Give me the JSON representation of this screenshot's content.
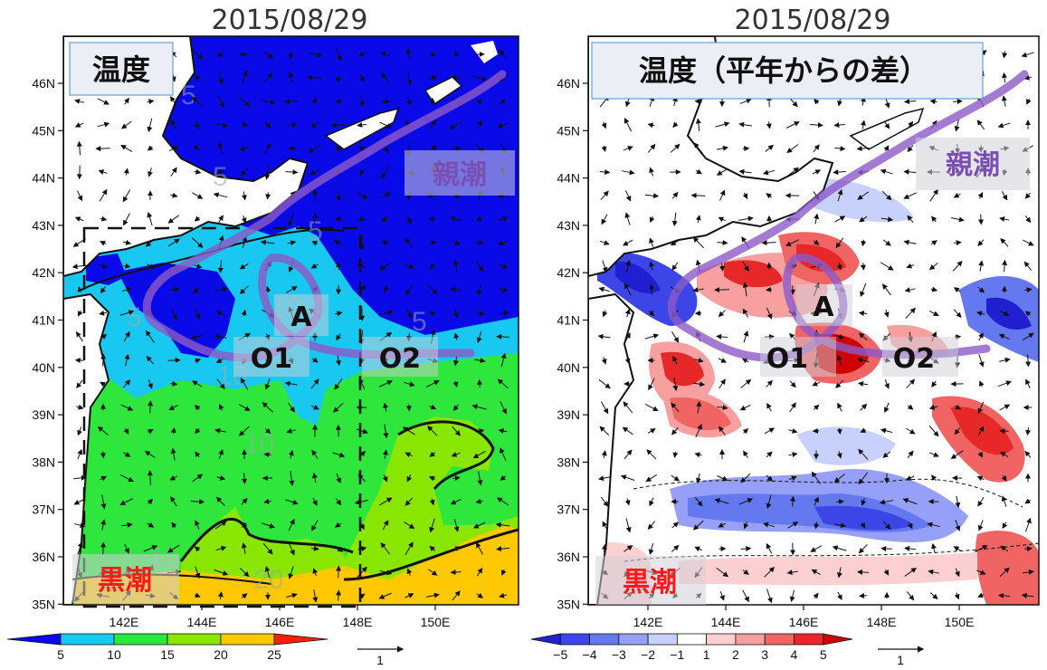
{
  "left_panel": {
    "date": "2015/08/29",
    "label": "温度",
    "oyashio": "親潮",
    "kuroshio": "黒潮",
    "point_a": "A",
    "point_o1": "O1",
    "point_o2": "O2",
    "lat_ticks": [
      "46N",
      "45N",
      "44N",
      "43N",
      "42N",
      "41N",
      "40N",
      "39N",
      "38N",
      "37N",
      "36N",
      "35N"
    ],
    "lon_ticks": [
      "142E",
      "144E",
      "146E",
      "148E",
      "150E"
    ],
    "contour_labels": [
      "5",
      "5",
      "5",
      "5",
      "10",
      "10",
      "10",
      "15",
      "20",
      "5"
    ],
    "colorbar": {
      "ticks": [
        "5",
        "10",
        "15",
        "20",
        "25"
      ],
      "colors": [
        "#0a0ae8",
        "#19c8f0",
        "#2ee63c",
        "#88e600",
        "#ffc800",
        "#ff1e00"
      ]
    },
    "vector_scale": "1"
  },
  "right_panel": {
    "date": "2015/08/29",
    "label": "温度（平年からの差）",
    "oyashio": "親潮",
    "kuroshio": "黒潮",
    "point_a": "A",
    "point_o1": "O1",
    "point_o2": "O2",
    "lat_ticks": [
      "46N",
      "45N",
      "44N",
      "43N",
      "42N",
      "41N",
      "40N",
      "39N",
      "38N",
      "37N",
      "36N",
      "35N"
    ],
    "lon_ticks": [
      "142E",
      "144E",
      "146E",
      "148E",
      "150E"
    ],
    "colorbar": {
      "ticks": [
        "−5",
        "−4",
        "−3",
        "−2",
        "−1",
        "1",
        "2",
        "3",
        "4",
        "5"
      ],
      "colors": [
        "#2020d0",
        "#3c46e6",
        "#6478f0",
        "#96a0f8",
        "#c8d0fc",
        "#ffffff",
        "#fcd0d0",
        "#f8a0a0",
        "#f06464",
        "#e62828",
        "#d00000"
      ]
    },
    "vector_scale": "1"
  },
  "colors": {
    "oyashio_text": "#7a4fb3",
    "kuroshio_text": "#ff1a1a",
    "current_path": "#8c5ac8"
  }
}
